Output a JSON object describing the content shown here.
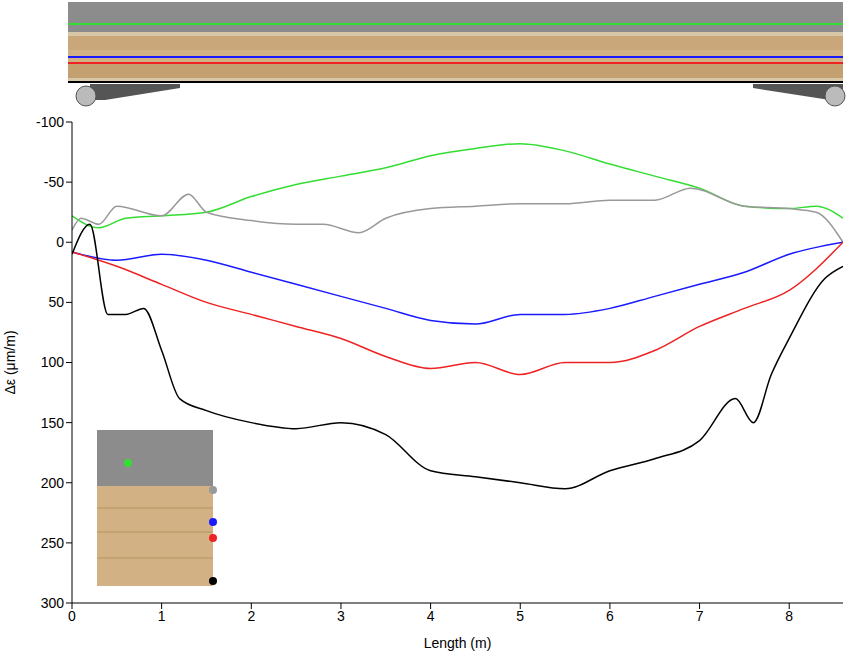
{
  "chart_data": {
    "type": "line",
    "x_label": "Length (m)",
    "y_label": "Δε (μm/m)",
    "xlim": [
      0,
      8.6
    ],
    "xticks": [
      0,
      1,
      2,
      3,
      4,
      5,
      6,
      7,
      8
    ],
    "ylim": [
      300,
      -100
    ],
    "yticks": [
      -100,
      -50,
      0,
      50,
      100,
      150,
      200,
      250,
      300
    ],
    "grid": false,
    "series": [
      {
        "color": "#33dd33",
        "x": [
          0,
          0.3,
          0.6,
          1,
          1.5,
          2,
          2.5,
          3,
          3.5,
          4,
          4.5,
          5,
          5.5,
          6,
          6.5,
          7,
          7.5,
          8,
          8.3,
          8.6
        ],
        "values": [
          -22,
          -12,
          -20,
          -22,
          -25,
          -38,
          -48,
          -55,
          -62,
          -72,
          -78,
          -82,
          -76,
          -65,
          -55,
          -45,
          -30,
          -28,
          -30,
          -20
        ]
      },
      {
        "color": "#999999",
        "x": [
          0,
          0.1,
          0.3,
          0.5,
          1,
          1.3,
          1.5,
          2,
          2.5,
          2.8,
          3.2,
          3.5,
          4,
          4.5,
          5,
          5.5,
          6,
          6.5,
          6.9,
          7.5,
          8,
          8.3,
          8.6
        ],
        "values": [
          -10,
          -20,
          -15,
          -30,
          -22,
          -40,
          -25,
          -18,
          -15,
          -15,
          -8,
          -20,
          -28,
          -30,
          -32,
          -32,
          -35,
          -35,
          -45,
          -30,
          -28,
          -25,
          0
        ]
      },
      {
        "color": "#1a1aff",
        "x": [
          0,
          0.5,
          1,
          1.5,
          2,
          2.5,
          3,
          3.5,
          4,
          4.5,
          5,
          5.5,
          6,
          6.5,
          7,
          7.5,
          8,
          8.6
        ],
        "values": [
          8,
          15,
          10,
          15,
          25,
          35,
          45,
          55,
          65,
          68,
          60,
          60,
          55,
          45,
          35,
          25,
          10,
          0
        ]
      },
      {
        "color": "#ee2222",
        "x": [
          0,
          0.5,
          1,
          1.5,
          2,
          2.5,
          3,
          3.5,
          4,
          4.5,
          5,
          5.5,
          6,
          6.5,
          7,
          7.5,
          8,
          8.6
        ],
        "values": [
          8,
          20,
          35,
          50,
          60,
          70,
          80,
          95,
          105,
          100,
          110,
          100,
          100,
          90,
          70,
          55,
          40,
          0
        ]
      },
      {
        "color": "#000000",
        "x": [
          0,
          0.2,
          0.4,
          0.6,
          0.8,
          1,
          1.2,
          1.5,
          2,
          2.5,
          3,
          3.5,
          4,
          4.5,
          5,
          5.5,
          6,
          6.5,
          7,
          7.4,
          7.6,
          7.8,
          8,
          8.4,
          8.6
        ],
        "values": [
          10,
          -15,
          60,
          60,
          55,
          90,
          130,
          140,
          150,
          155,
          150,
          160,
          190,
          195,
          200,
          205,
          190,
          180,
          165,
          130,
          150,
          110,
          80,
          30,
          20
        ]
      }
    ]
  }
}
